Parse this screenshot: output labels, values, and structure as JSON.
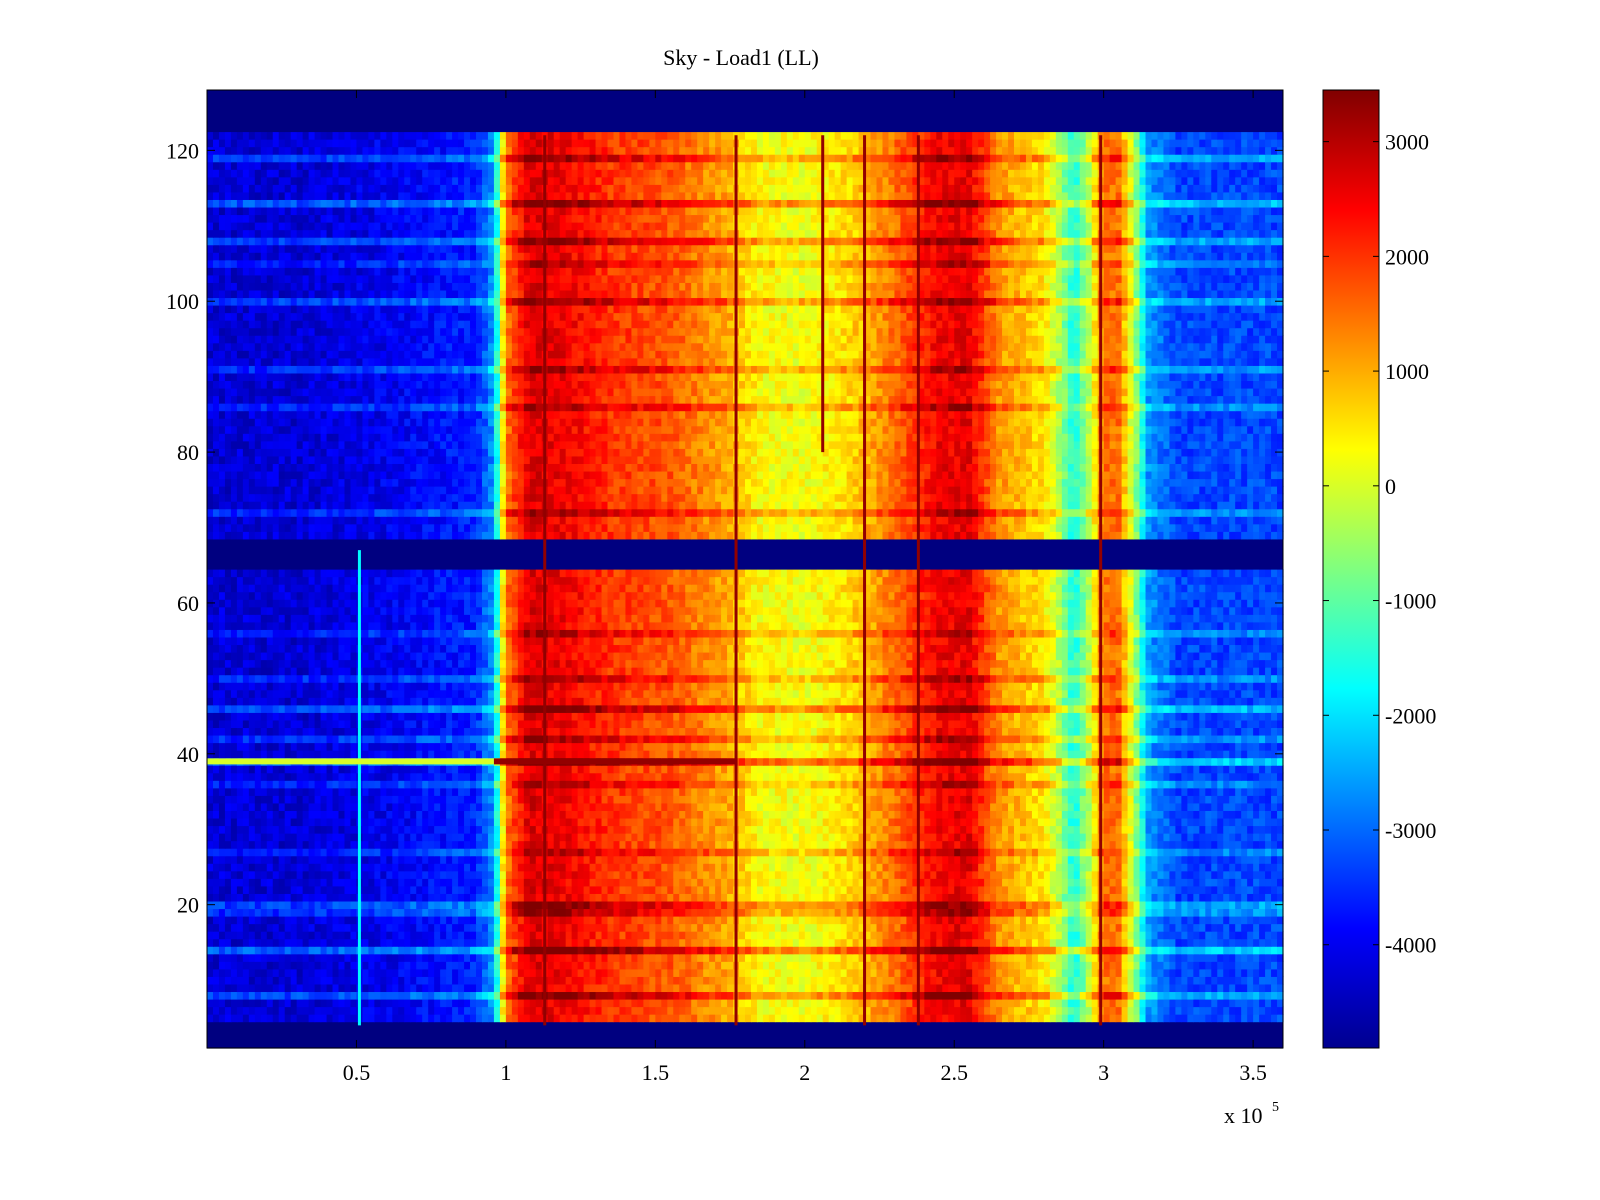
{
  "chart_data": {
    "type": "heatmap",
    "title": "Sky - Load1 (LL)",
    "xlabel": "",
    "ylabel": "",
    "x_scale_label": "x 10",
    "x_scale_exponent": "5",
    "xlim": [
      0,
      3.6
    ],
    "ylim": [
      1,
      128
    ],
    "x_ticks": [
      {
        "value": 0.5,
        "label": "0.5"
      },
      {
        "value": 1.0,
        "label": "1"
      },
      {
        "value": 1.5,
        "label": "1.5"
      },
      {
        "value": 2.0,
        "label": "2"
      },
      {
        "value": 2.5,
        "label": "2.5"
      },
      {
        "value": 3.0,
        "label": "3"
      },
      {
        "value": 3.5,
        "label": "3.5"
      }
    ],
    "y_ticks": [
      {
        "value": 20,
        "label": "20"
      },
      {
        "value": 40,
        "label": "40"
      },
      {
        "value": 60,
        "label": "60"
      },
      {
        "value": 80,
        "label": "80"
      },
      {
        "value": 100,
        "label": "100"
      },
      {
        "value": 120,
        "label": "120"
      }
    ],
    "colorbar": {
      "colormap": "jet",
      "range": [
        -4900,
        3450
      ],
      "ticks": [
        {
          "value": 3000,
          "label": "3000"
        },
        {
          "value": 2000,
          "label": "2000"
        },
        {
          "value": 1000,
          "label": "1000"
        },
        {
          "value": 0,
          "label": "0"
        },
        {
          "value": -1000,
          "label": "-1000"
        },
        {
          "value": -2000,
          "label": "-2000"
        },
        {
          "value": -3000,
          "label": "-3000"
        },
        {
          "value": -4000,
          "label": "-4000"
        }
      ]
    },
    "profile_x": [
      0,
      0.3,
      0.6,
      0.9,
      0.96,
      1.0,
      1.08,
      1.2,
      1.35,
      1.55,
      1.75,
      1.85,
      2.0,
      2.15,
      2.3,
      2.45,
      2.55,
      2.65,
      2.8,
      2.85,
      2.9,
      2.95,
      3.0,
      3.05,
      3.1,
      3.15,
      3.25,
      3.6
    ],
    "profile_values": [
      -4200,
      -4200,
      -4000,
      -3600,
      -2600,
      1400,
      2700,
      2500,
      2000,
      1700,
      1000,
      300,
      200,
      600,
      1500,
      2500,
      2600,
      1200,
      500,
      -300,
      -1600,
      -300,
      1500,
      1500,
      -300,
      -2600,
      -3300,
      -3300
    ],
    "empty_rows": [
      [
        1,
        4
      ],
      [
        65,
        68
      ],
      [
        123,
        128
      ]
    ],
    "empty_value": -4900,
    "row_bands": [
      {
        "y": 8,
        "offset": 1200
      },
      {
        "y": 14,
        "offset": 1500
      },
      {
        "y": 19,
        "offset": 900
      },
      {
        "y": 20,
        "offset": 1100
      },
      {
        "y": 27,
        "offset": 700
      },
      {
        "y": 36,
        "offset": 700
      },
      {
        "y": 39,
        "offset": 1600
      },
      {
        "y": 42,
        "offset": 900
      },
      {
        "y": 46,
        "offset": 1300
      },
      {
        "y": 50,
        "offset": 800
      },
      {
        "y": 56,
        "offset": 700
      },
      {
        "y": 72,
        "offset": 900
      },
      {
        "y": 86,
        "offset": 800
      },
      {
        "y": 91,
        "offset": 900
      },
      {
        "y": 100,
        "offset": 1100
      },
      {
        "y": 105,
        "offset": 700
      },
      {
        "y": 108,
        "offset": 1100
      },
      {
        "y": 113,
        "offset": 1300
      },
      {
        "y": 119,
        "offset": 1000
      }
    ],
    "vertical_lines": [
      {
        "x": 0.51,
        "value": -1800,
        "y_range": [
          4,
          67
        ]
      },
      {
        "x": 1.13,
        "value": 3300,
        "y_range": [
          4,
          122
        ]
      },
      {
        "x": 1.77,
        "value": 3300,
        "y_range": [
          4,
          122
        ]
      },
      {
        "x": 2.06,
        "value": 3300,
        "y_range": [
          80,
          122
        ]
      },
      {
        "x": 2.2,
        "value": 3300,
        "y_range": [
          4,
          122
        ]
      },
      {
        "x": 2.38,
        "value": 3300,
        "y_range": [
          4,
          122
        ]
      },
      {
        "x": 2.99,
        "value": 3300,
        "y_range": [
          4,
          122
        ]
      }
    ],
    "horizontal_lines": [
      {
        "y": 39,
        "value": 0,
        "x_range": [
          0,
          0.96
        ]
      },
      {
        "y": 39,
        "value": 3300,
        "x_range": [
          0.96,
          1.77
        ]
      }
    ]
  }
}
